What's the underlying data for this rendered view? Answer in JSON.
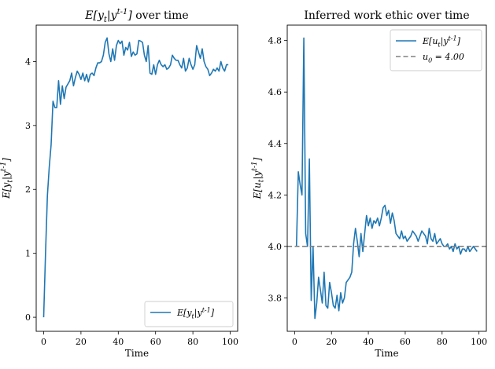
{
  "chart_data": [
    {
      "type": "line",
      "title": "E[y_t|y^{t-1}] over time",
      "xlabel": "Time",
      "ylabel": "E[y_t|y^{t-1}]",
      "xlim": [
        -4,
        104
      ],
      "ylim": [
        -0.22,
        4.57
      ],
      "xticks": [
        0,
        20,
        40,
        60,
        80,
        100
      ],
      "yticks": [
        0,
        1,
        2,
        3,
        4
      ],
      "grid": false,
      "legend_position": "lower right",
      "series": [
        {
          "name": "E[y_t|y^{t-1}]",
          "color": "#1f77b4",
          "style": "solid",
          "x": [
            0,
            1,
            2,
            3,
            4,
            5,
            6,
            7,
            8,
            9,
            10,
            11,
            12,
            13,
            14,
            15,
            16,
            17,
            18,
            19,
            20,
            21,
            22,
            23,
            24,
            25,
            26,
            27,
            28,
            29,
            30,
            31,
            32,
            33,
            34,
            35,
            36,
            37,
            38,
            39,
            40,
            41,
            42,
            43,
            44,
            45,
            46,
            47,
            48,
            49,
            50,
            51,
            52,
            53,
            54,
            55,
            56,
            57,
            58,
            59,
            60,
            61,
            62,
            63,
            64,
            65,
            66,
            67,
            68,
            69,
            70,
            71,
            72,
            73,
            74,
            75,
            76,
            77,
            78,
            79,
            80,
            81,
            82,
            83,
            84,
            85,
            86,
            87,
            88,
            89,
            90,
            91,
            92,
            93,
            94,
            95,
            96,
            97,
            98,
            99
          ],
          "y": [
            0.0,
            1.0,
            1.9,
            2.35,
            2.7,
            3.38,
            3.28,
            3.28,
            3.7,
            3.33,
            3.62,
            3.42,
            3.6,
            3.65,
            3.7,
            3.82,
            3.62,
            3.75,
            3.85,
            3.8,
            3.72,
            3.82,
            3.7,
            3.8,
            3.68,
            3.8,
            3.82,
            3.78,
            3.9,
            3.98,
            3.98,
            4.0,
            4.1,
            4.3,
            4.37,
            4.12,
            4.0,
            4.2,
            4.02,
            4.25,
            4.33,
            4.28,
            4.32,
            4.1,
            4.22,
            4.18,
            4.3,
            4.08,
            4.15,
            4.1,
            4.12,
            4.33,
            4.32,
            4.3,
            4.1,
            4.0,
            4.25,
            3.82,
            3.8,
            3.95,
            3.8,
            3.95,
            4.02,
            3.95,
            3.92,
            3.95,
            3.88,
            3.9,
            3.95,
            4.1,
            4.05,
            4.02,
            4.02,
            3.95,
            3.9,
            4.05,
            3.85,
            3.9,
            4.05,
            3.95,
            3.88,
            3.95,
            4.25,
            4.15,
            4.05,
            4.2,
            4.0,
            3.92,
            3.88,
            3.78,
            3.82,
            3.88,
            3.85,
            3.9,
            3.85,
            4.0,
            3.9,
            3.85,
            3.95,
            3.95
          ]
        }
      ]
    },
    {
      "type": "line",
      "title": "Inferred work ethic over time",
      "xlabel": "Time",
      "ylabel": "E[u_t|y^{t-1}]",
      "xlim": [
        -4,
        104
      ],
      "ylim": [
        3.67,
        4.86
      ],
      "xticks": [
        0,
        20,
        40,
        60,
        80,
        100
      ],
      "yticks": [
        3.8,
        4.0,
        4.2,
        4.4,
        4.6,
        4.8
      ],
      "grid": false,
      "legend_position": "upper right",
      "series": [
        {
          "name": "E[u_t|y^{t-1}]",
          "color": "#1f77b4",
          "style": "solid",
          "x": [
            1,
            2,
            3,
            4,
            5,
            6,
            7,
            8,
            9,
            10,
            11,
            12,
            13,
            14,
            15,
            16,
            17,
            18,
            19,
            20,
            21,
            22,
            23,
            24,
            25,
            26,
            27,
            28,
            29,
            30,
            31,
            32,
            33,
            34,
            35,
            36,
            37,
            38,
            39,
            40,
            41,
            42,
            43,
            44,
            45,
            46,
            47,
            48,
            49,
            50,
            51,
            52,
            53,
            54,
            55,
            56,
            57,
            58,
            59,
            60,
            61,
            62,
            63,
            64,
            65,
            66,
            67,
            68,
            69,
            70,
            71,
            72,
            73,
            74,
            75,
            76,
            77,
            78,
            79,
            80,
            81,
            82,
            83,
            84,
            85,
            86,
            87,
            88,
            89,
            90,
            91,
            92,
            93,
            94,
            95,
            96,
            97,
            98,
            99
          ],
          "y": [
            4.0,
            4.29,
            4.24,
            4.2,
            4.81,
            4.05,
            4.0,
            4.34,
            3.79,
            4.0,
            3.72,
            3.78,
            3.88,
            3.83,
            3.78,
            3.9,
            3.77,
            3.76,
            3.86,
            3.82,
            3.77,
            3.76,
            3.81,
            3.75,
            3.82,
            3.78,
            3.8,
            3.86,
            3.87,
            3.88,
            3.9,
            4.01,
            4.07,
            4.02,
            3.96,
            4.05,
            3.98,
            4.05,
            4.12,
            4.08,
            4.11,
            4.07,
            4.1,
            4.09,
            4.11,
            4.08,
            4.11,
            4.15,
            4.16,
            4.12,
            4.14,
            4.09,
            4.13,
            4.1,
            4.05,
            4.04,
            4.03,
            4.06,
            4.03,
            4.04,
            4.02,
            4.03,
            4.04,
            4.06,
            4.05,
            4.04,
            4.02,
            4.04,
            4.06,
            4.05,
            4.04,
            4.01,
            4.07,
            4.03,
            4.02,
            4.05,
            4.01,
            4.02,
            4.03,
            4.01,
            4.0,
            4.0,
            4.01,
            3.99,
            4.0,
            3.98,
            4.01,
            3.99,
            4.0,
            3.97,
            3.99,
            3.99,
            3.98,
            4.0,
            3.98,
            3.99,
            4.0,
            3.99,
            3.98
          ]
        },
        {
          "name": "u_0 = 4.00",
          "color": "#808080",
          "style": "dashed",
          "x": [
            -4,
            104
          ],
          "y": [
            4.0,
            4.0
          ]
        }
      ]
    }
  ]
}
